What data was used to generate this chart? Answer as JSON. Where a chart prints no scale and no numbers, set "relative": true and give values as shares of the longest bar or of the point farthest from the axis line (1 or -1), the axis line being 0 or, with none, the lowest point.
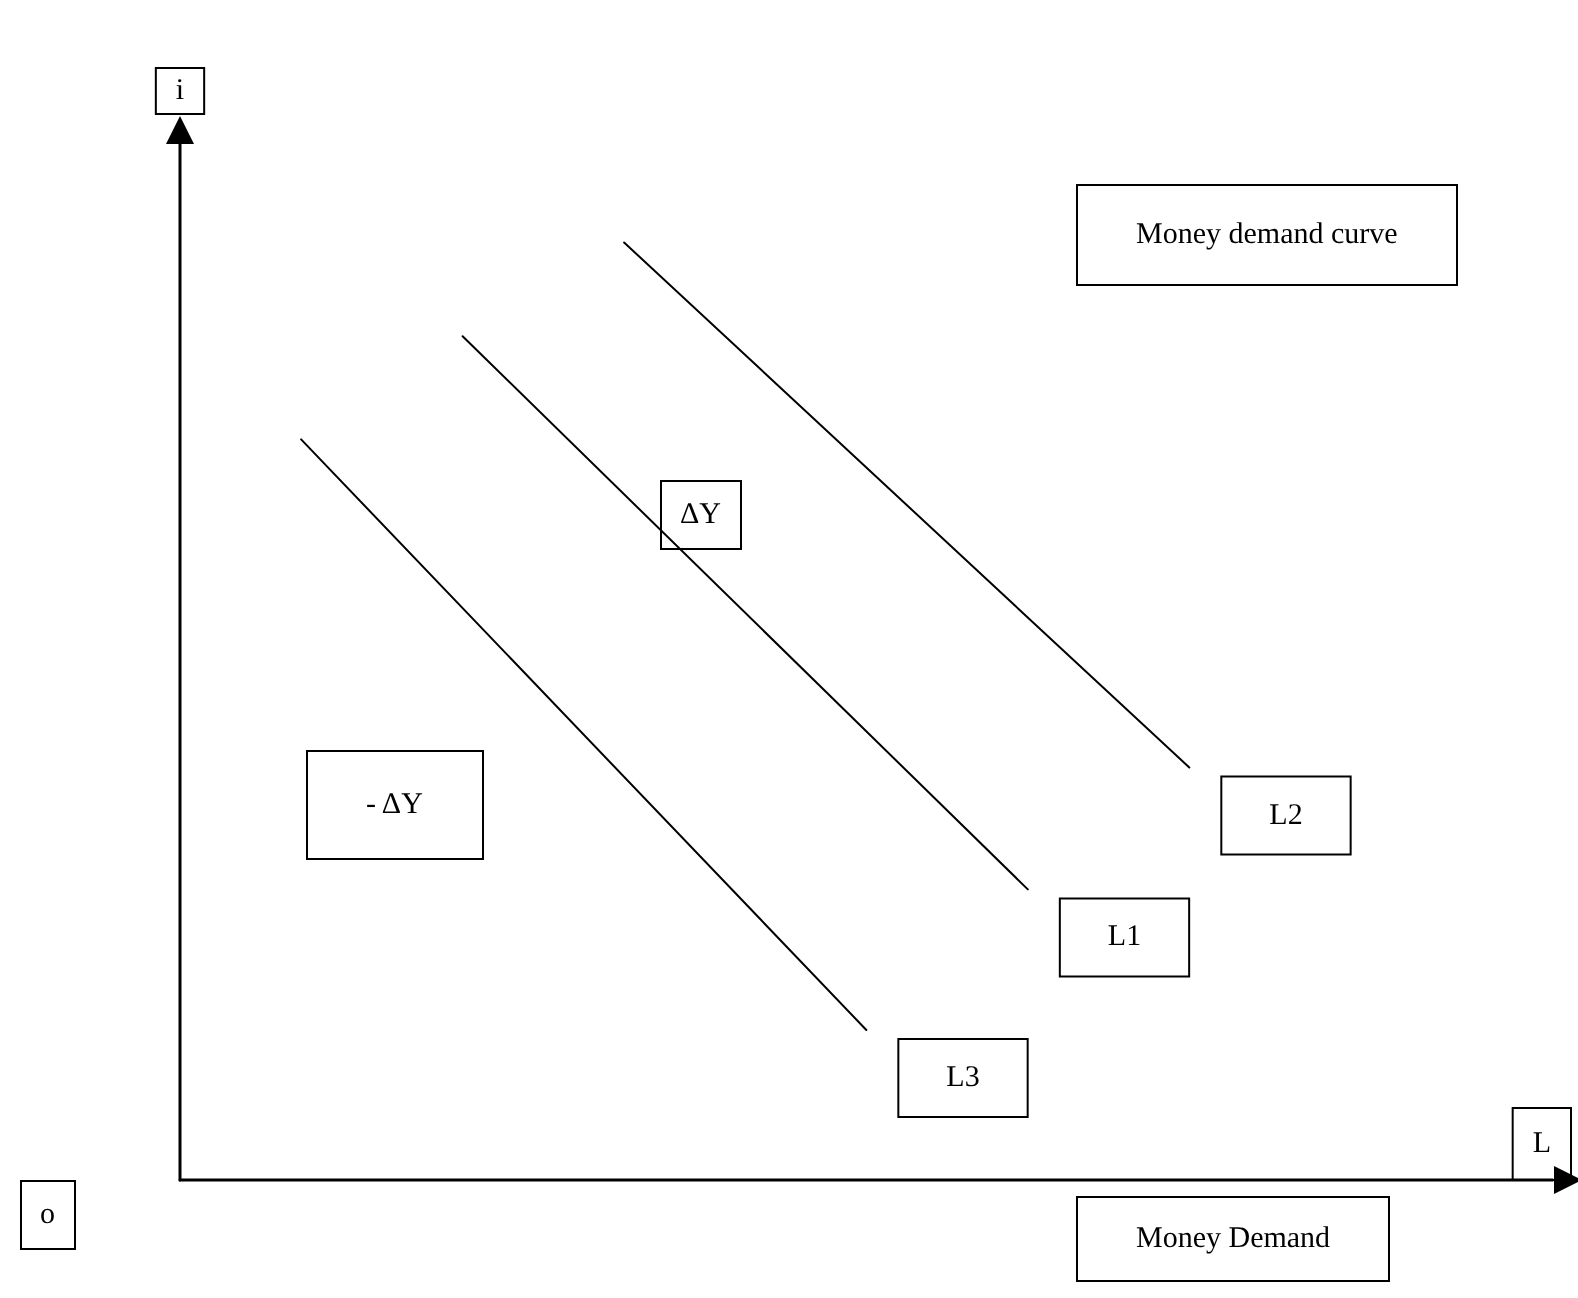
{
  "chart_data": {
    "type": "line",
    "title": "Money demand curve",
    "xlabel": "L",
    "ylabel": "i",
    "annotations": [
      "o",
      "ΔY",
      "- ΔY",
      "Money Demand"
    ],
    "categories": [
      null,
      null,
      null,
      null,
      null,
      null,
      null,
      null,
      null,
      null,
      null,
      null,
      null,
      null,
      null,
      null,
      null
    ],
    "relative": true,
    "legend": false,
    "marker": "none",
    "grid": false,
    "line_style": "solid",
    "series": [
      {
        "name": "L2",
        "color": "#000000",
        "values": [
          null,
          null,
          null,
          null,
          null,
          1.0,
          null,
          null,
          null,
          null,
          null,
          null,
          0.44,
          null,
          null,
          null,
          null
        ]
      },
      {
        "name": "L1",
        "color": "#000000",
        "values": [
          null,
          null,
          null,
          0.9,
          null,
          null,
          null,
          null,
          null,
          null,
          0.31,
          null,
          null,
          null,
          null,
          null,
          null
        ]
      },
      {
        "name": "L3",
        "color": "#000000",
        "values": [
          null,
          0.79,
          null,
          null,
          null,
          null,
          null,
          null,
          0.16,
          null,
          null,
          null,
          null,
          null,
          null,
          null,
          null
        ]
      }
    ]
  }
}
